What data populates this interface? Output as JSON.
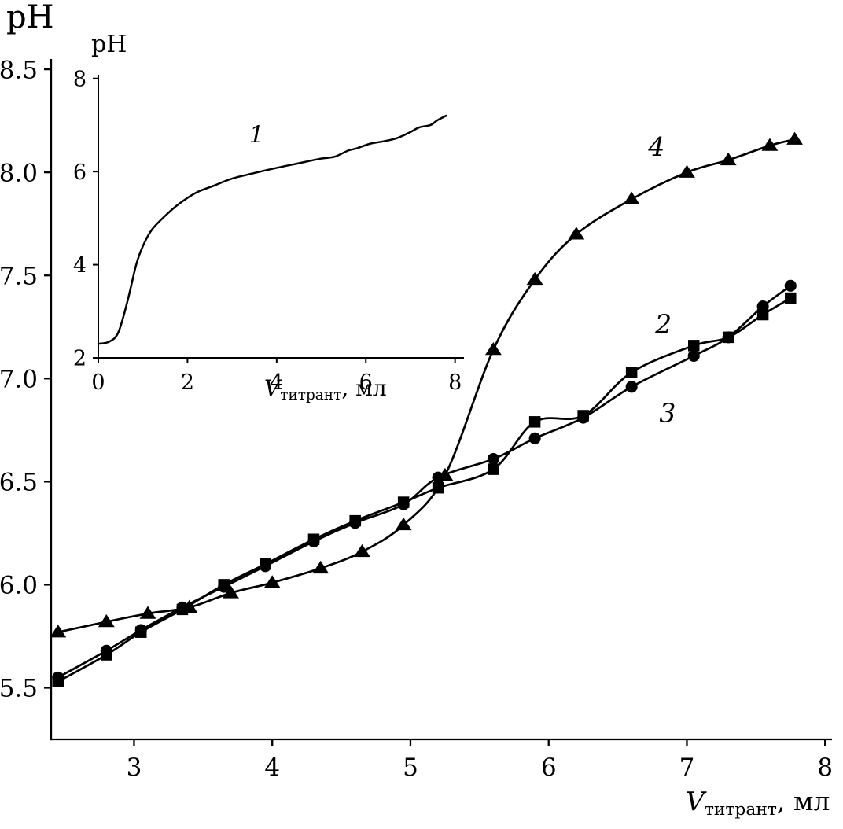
{
  "figure": {
    "background": "#ffffff",
    "ink": "#000000"
  },
  "chart_data": [
    {
      "id": "main",
      "type": "line",
      "title": "",
      "ylabel": "pH",
      "xlabel": {
        "symbol": "V",
        "sub": "титрант",
        "rest": ", мл"
      },
      "xlim": [
        2.4,
        8.05
      ],
      "ylim": [
        5.25,
        8.55
      ],
      "grid": false,
      "xticks": [
        {
          "value": 3,
          "label": "3"
        },
        {
          "value": 4,
          "label": "4"
        },
        {
          "value": 5,
          "label": "5"
        },
        {
          "value": 6,
          "label": "6"
        },
        {
          "value": 7,
          "label": "7"
        },
        {
          "value": 8,
          "label": "8"
        }
      ],
      "yticks": [
        {
          "value": 5.5,
          "label": "5.5"
        },
        {
          "value": 6.0,
          "label": "6.0"
        },
        {
          "value": 6.5,
          "label": "6.5"
        },
        {
          "value": 7.0,
          "label": "7.0"
        },
        {
          "value": 7.5,
          "label": "7.5"
        },
        {
          "value": 8.0,
          "label": "8.0"
        },
        {
          "value": 8.5,
          "label": "8.5"
        }
      ],
      "series": [
        {
          "name": "2",
          "marker": "square",
          "points": [
            [
              2.45,
              5.53
            ],
            [
              2.8,
              5.66
            ],
            [
              3.05,
              5.77
            ],
            [
              3.35,
              5.88
            ],
            [
              3.65,
              6.0
            ],
            [
              3.95,
              6.1
            ],
            [
              4.3,
              6.22
            ],
            [
              4.6,
              6.31
            ],
            [
              4.95,
              6.4
            ],
            [
              5.2,
              6.47
            ],
            [
              5.6,
              6.56
            ],
            [
              5.9,
              6.79
            ],
            [
              6.25,
              6.82
            ],
            [
              6.6,
              7.03
            ],
            [
              7.05,
              7.16
            ],
            [
              7.3,
              7.2
            ],
            [
              7.55,
              7.31
            ],
            [
              7.75,
              7.39
            ]
          ]
        },
        {
          "name": "3",
          "marker": "circle",
          "points": [
            [
              2.45,
              5.55
            ],
            [
              2.8,
              5.68
            ],
            [
              3.05,
              5.78
            ],
            [
              3.35,
              5.89
            ],
            [
              3.65,
              5.99
            ],
            [
              3.95,
              6.09
            ],
            [
              4.3,
              6.21
            ],
            [
              4.6,
              6.3
            ],
            [
              4.95,
              6.39
            ],
            [
              5.2,
              6.52
            ],
            [
              5.6,
              6.61
            ],
            [
              5.9,
              6.71
            ],
            [
              6.25,
              6.81
            ],
            [
              6.6,
              6.96
            ],
            [
              7.05,
              7.11
            ],
            [
              7.3,
              7.2
            ],
            [
              7.55,
              7.35
            ],
            [
              7.75,
              7.45
            ]
          ]
        },
        {
          "name": "4",
          "marker": "triangle",
          "points": [
            [
              2.45,
              5.77
            ],
            [
              2.8,
              5.82
            ],
            [
              3.1,
              5.86
            ],
            [
              3.4,
              5.89
            ],
            [
              3.7,
              5.96
            ],
            [
              4.0,
              6.01
            ],
            [
              4.35,
              6.08
            ],
            [
              4.65,
              6.16
            ],
            [
              4.95,
              6.29
            ],
            [
              5.25,
              6.53
            ],
            [
              5.6,
              7.14
            ],
            [
              5.9,
              7.48
            ],
            [
              6.2,
              7.7
            ],
            [
              6.6,
              7.87
            ],
            [
              7.0,
              8.0
            ],
            [
              7.3,
              8.06
            ],
            [
              7.6,
              8.13
            ],
            [
              7.78,
              8.16
            ]
          ]
        }
      ],
      "annotations": [
        {
          "label": "4",
          "x": 6.78,
          "y": 8.08
        },
        {
          "label": "2",
          "x": 6.83,
          "y": 7.22
        },
        {
          "label": "3",
          "x": 6.86,
          "y": 6.79
        }
      ]
    },
    {
      "id": "inset",
      "type": "line",
      "title": "",
      "ylabel": "pH",
      "xlabel": {
        "symbol": "V",
        "sub": "титрант",
        "rest": ", мл"
      },
      "xlim": [
        0,
        8.2
      ],
      "ylim": [
        2,
        8.08
      ],
      "grid": false,
      "xticks": [
        {
          "value": 0,
          "label": "0"
        },
        {
          "value": 2,
          "label": "2"
        },
        {
          "value": 4,
          "label": "4"
        },
        {
          "value": 6,
          "label": "6"
        },
        {
          "value": 8,
          "label": "8"
        }
      ],
      "yticks": [
        {
          "value": 2,
          "label": "2"
        },
        {
          "value": 4,
          "label": "4"
        },
        {
          "value": 6,
          "label": "6"
        },
        {
          "value": 8,
          "label": "8"
        }
      ],
      "series": [
        {
          "name": "1",
          "marker": "none",
          "points": [
            [
              0.0,
              2.3
            ],
            [
              0.25,
              2.35
            ],
            [
              0.45,
              2.55
            ],
            [
              0.65,
              3.2
            ],
            [
              0.85,
              4.0
            ],
            [
              1.0,
              4.4
            ],
            [
              1.2,
              4.75
            ],
            [
              1.5,
              5.05
            ],
            [
              1.8,
              5.3
            ],
            [
              2.2,
              5.55
            ],
            [
              2.6,
              5.7
            ],
            [
              3.0,
              5.85
            ],
            [
              3.5,
              5.97
            ],
            [
              4.0,
              6.08
            ],
            [
              4.5,
              6.18
            ],
            [
              5.0,
              6.28
            ],
            [
              5.3,
              6.32
            ],
            [
              5.6,
              6.45
            ],
            [
              5.8,
              6.5
            ],
            [
              6.1,
              6.6
            ],
            [
              6.4,
              6.65
            ],
            [
              6.7,
              6.72
            ],
            [
              7.0,
              6.85
            ],
            [
              7.2,
              6.95
            ],
            [
              7.45,
              7.0
            ],
            [
              7.6,
              7.1
            ],
            [
              7.8,
              7.2
            ]
          ]
        }
      ],
      "annotations": [
        {
          "label": "1",
          "x": 3.55,
          "y": 6.62
        }
      ]
    }
  ]
}
